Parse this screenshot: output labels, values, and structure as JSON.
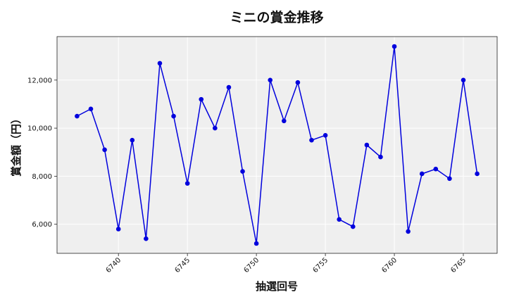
{
  "chart_data": {
    "type": "line",
    "title": "ミニの賞金推移",
    "xlabel": "抽選回号",
    "ylabel": "賞金額（円）",
    "x": [
      6737,
      6738,
      6739,
      6740,
      6741,
      6742,
      6743,
      6744,
      6745,
      6746,
      6747,
      6748,
      6749,
      6750,
      6751,
      6752,
      6753,
      6754,
      6755,
      6756,
      6757,
      6758,
      6759,
      6760,
      6761,
      6762,
      6763,
      6764,
      6765,
      6766
    ],
    "y": [
      10500,
      10800,
      9100,
      5800,
      9500,
      5400,
      12700,
      10500,
      7700,
      11200,
      10000,
      11700,
      8200,
      5200,
      12000,
      10300,
      11900,
      9500,
      9700,
      6200,
      5900,
      9300,
      8800,
      13400,
      5700,
      8100,
      8300,
      7900,
      12000,
      8100
    ],
    "xlim": [
      6735.55,
      6767.45
    ],
    "ylim": [
      4790,
      13810
    ],
    "x_ticks": [
      6740,
      6745,
      6750,
      6755,
      6760,
      6765
    ],
    "x_tick_labels": [
      "6740",
      "6745",
      "6750",
      "6755",
      "6760",
      "6765"
    ],
    "y_ticks": [
      6000,
      8000,
      10000,
      12000
    ],
    "y_tick_labels": [
      "6,000",
      "8,000",
      "10,000",
      "12,000"
    ],
    "grid": true,
    "line_color": "#0000dd",
    "marker_color": "#0000dd",
    "plot_background": "#efefef",
    "grid_color": "#ffffff"
  }
}
